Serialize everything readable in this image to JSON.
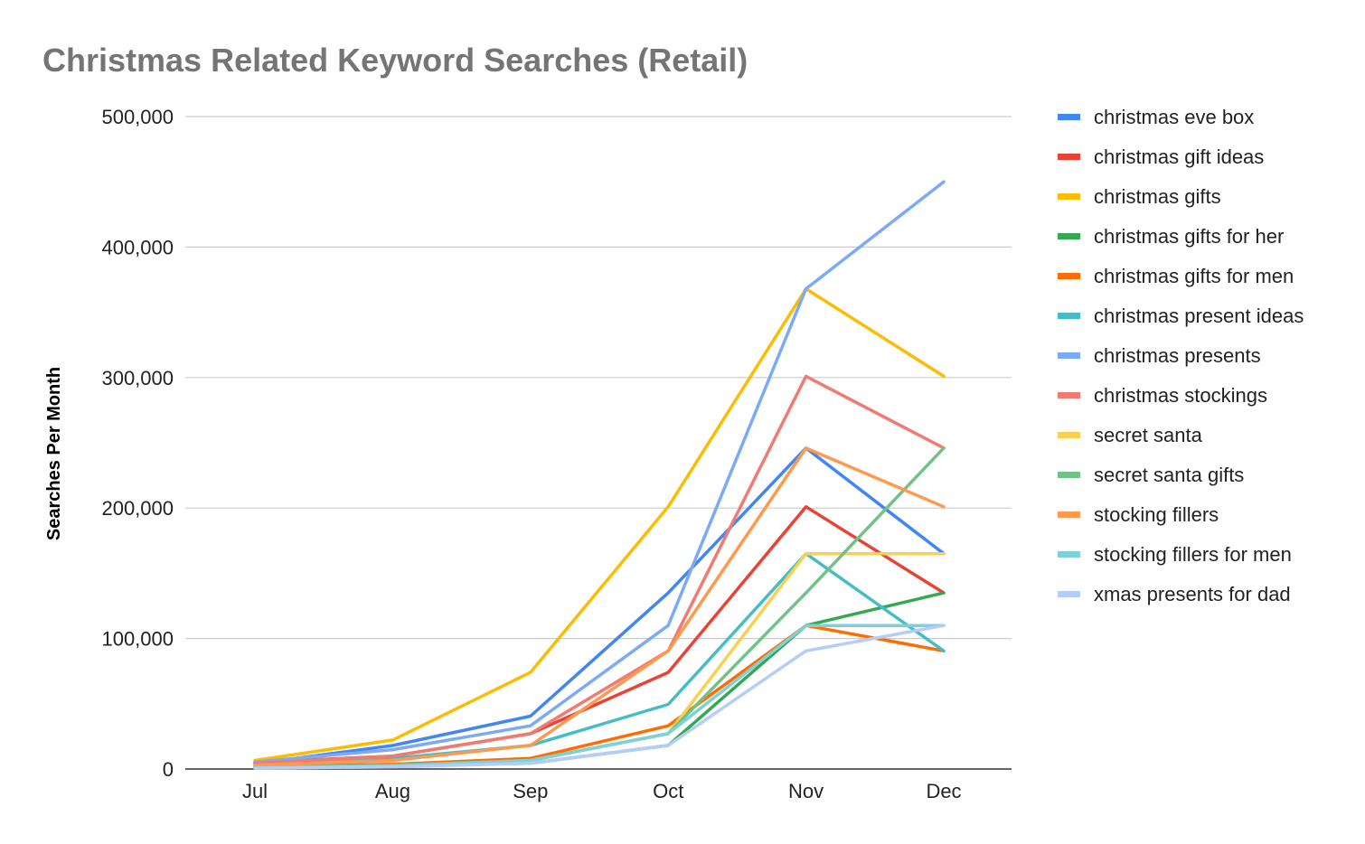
{
  "chart_data": {
    "type": "line",
    "title": "Christmas Related Keyword Searches (Retail)",
    "xlabel": "",
    "ylabel": "Searches Per Month",
    "categories": [
      "Jul",
      "Aug",
      "Sep",
      "Oct",
      "Nov",
      "Dec"
    ],
    "ylim": [
      0,
      500000
    ],
    "yticks": [
      0,
      100000,
      200000,
      300000,
      400000,
      500000
    ],
    "ytick_labels": [
      "0",
      "100,000",
      "200,000",
      "300,000",
      "400,000",
      "500,000"
    ],
    "grid": true,
    "legend_position": "right",
    "series": [
      {
        "name": "christmas eve box",
        "color": "#4285f4",
        "values": [
          4000,
          18000,
          40500,
          135000,
          246000,
          165000
        ]
      },
      {
        "name": "christmas gift ideas",
        "color": "#ea4335",
        "values": [
          5000,
          9900,
          27100,
          74000,
          201000,
          135000
        ]
      },
      {
        "name": "christmas gifts",
        "color": "#fbbc04",
        "values": [
          6600,
          22200,
          74000,
          201000,
          368000,
          301000
        ]
      },
      {
        "name": "christmas gifts for her",
        "color": "#34a853",
        "values": [
          1300,
          2400,
          4400,
          18100,
          110000,
          135000
        ]
      },
      {
        "name": "christmas gifts for men",
        "color": "#ff6d01",
        "values": [
          1900,
          3600,
          8100,
          33100,
          110000,
          90500
        ]
      },
      {
        "name": "christmas present ideas",
        "color": "#46bdc6",
        "values": [
          3600,
          8100,
          18100,
          49500,
          165000,
          90500
        ]
      },
      {
        "name": "christmas presents",
        "color": "#7baaf7",
        "values": [
          5400,
          14800,
          33100,
          110000,
          368000,
          450000
        ]
      },
      {
        "name": "christmas stockings",
        "color": "#f07b72",
        "values": [
          4400,
          9900,
          27100,
          90500,
          301000,
          246000
        ]
      },
      {
        "name": "secret santa",
        "color": "#fcd04f",
        "values": [
          1000,
          2400,
          6600,
          27100,
          165000,
          165000
        ]
      },
      {
        "name": "secret santa gifts",
        "color": "#71c287",
        "values": [
          1300,
          2900,
          6600,
          27100,
          135000,
          246000
        ]
      },
      {
        "name": "stocking fillers",
        "color": "#ff994d",
        "values": [
          2900,
          6600,
          18100,
          90500,
          246000,
          201000
        ]
      },
      {
        "name": "stocking fillers for men",
        "color": "#7ed1d7",
        "values": [
          900,
          2400,
          6600,
          27100,
          110000,
          110000
        ]
      },
      {
        "name": "xmas presents for dad",
        "color": "#b3cefb",
        "values": [
          600,
          1600,
          4400,
          18100,
          90500,
          110000
        ]
      }
    ]
  }
}
